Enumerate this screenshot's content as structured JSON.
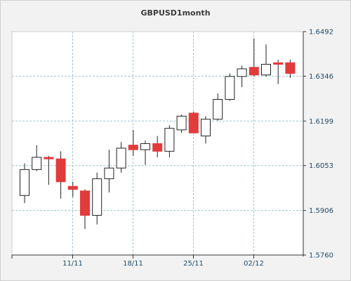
{
  "chart_data": {
    "type": "candlestick",
    "title": "GBPUSD1month",
    "y_ticks": [
      "1.6492",
      "1.6346",
      "1.6199",
      "1.6053",
      "1.5906",
      "1.5760"
    ],
    "ylim": [
      1.576,
      1.6492
    ],
    "x_ticks": [
      {
        "label": "11/11",
        "at_index": 4
      },
      {
        "label": "18/11",
        "at_index": 9
      },
      {
        "label": "25/11",
        "at_index": 14
      },
      {
        "label": "02/12",
        "at_index": 19
      }
    ],
    "grid": true,
    "colors": {
      "up_fill": "#ffffff",
      "down_fill": "#e33b3b",
      "grid": "#9fc7d3",
      "axis": "#333333"
    },
    "candles": [
      {
        "open": 1.5955,
        "high": 1.606,
        "low": 1.593,
        "close": 1.604
      },
      {
        "open": 1.604,
        "high": 1.612,
        "low": 1.6035,
        "close": 1.608
      },
      {
        "open": 1.608,
        "high": 1.6085,
        "low": 1.599,
        "close": 1.6075
      },
      {
        "open": 1.6075,
        "high": 1.61,
        "low": 1.5945,
        "close": 1.6
      },
      {
        "open": 1.5985,
        "high": 1.6,
        "low": 1.595,
        "close": 1.5975
      },
      {
        "open": 1.597,
        "high": 1.5975,
        "low": 1.5845,
        "close": 1.589
      },
      {
        "open": 1.589,
        "high": 1.603,
        "low": 1.586,
        "close": 1.601
      },
      {
        "open": 1.601,
        "high": 1.6105,
        "low": 1.5965,
        "close": 1.6045
      },
      {
        "open": 1.6045,
        "high": 1.613,
        "low": 1.603,
        "close": 1.611
      },
      {
        "open": 1.612,
        "high": 1.617,
        "low": 1.6085,
        "close": 1.6105
      },
      {
        "open": 1.6105,
        "high": 1.6135,
        "low": 1.6055,
        "close": 1.6125
      },
      {
        "open": 1.6125,
        "high": 1.615,
        "low": 1.608,
        "close": 1.61
      },
      {
        "open": 1.61,
        "high": 1.6185,
        "low": 1.608,
        "close": 1.6175
      },
      {
        "open": 1.617,
        "high": 1.622,
        "low": 1.616,
        "close": 1.6215
      },
      {
        "open": 1.6225,
        "high": 1.623,
        "low": 1.616,
        "close": 1.616
      },
      {
        "open": 1.615,
        "high": 1.6215,
        "low": 1.6125,
        "close": 1.6205
      },
      {
        "open": 1.6205,
        "high": 1.629,
        "low": 1.62,
        "close": 1.627
      },
      {
        "open": 1.627,
        "high": 1.6355,
        "low": 1.6265,
        "close": 1.6345
      },
      {
        "open": 1.6345,
        "high": 1.638,
        "low": 1.631,
        "close": 1.637
      },
      {
        "open": 1.6375,
        "high": 1.647,
        "low": 1.6345,
        "close": 1.635
      },
      {
        "open": 1.635,
        "high": 1.645,
        "low": 1.6345,
        "close": 1.6385
      },
      {
        "open": 1.639,
        "high": 1.64,
        "low": 1.632,
        "close": 1.6385
      },
      {
        "open": 1.639,
        "high": 1.64,
        "low": 1.634,
        "close": 1.6355
      }
    ]
  }
}
